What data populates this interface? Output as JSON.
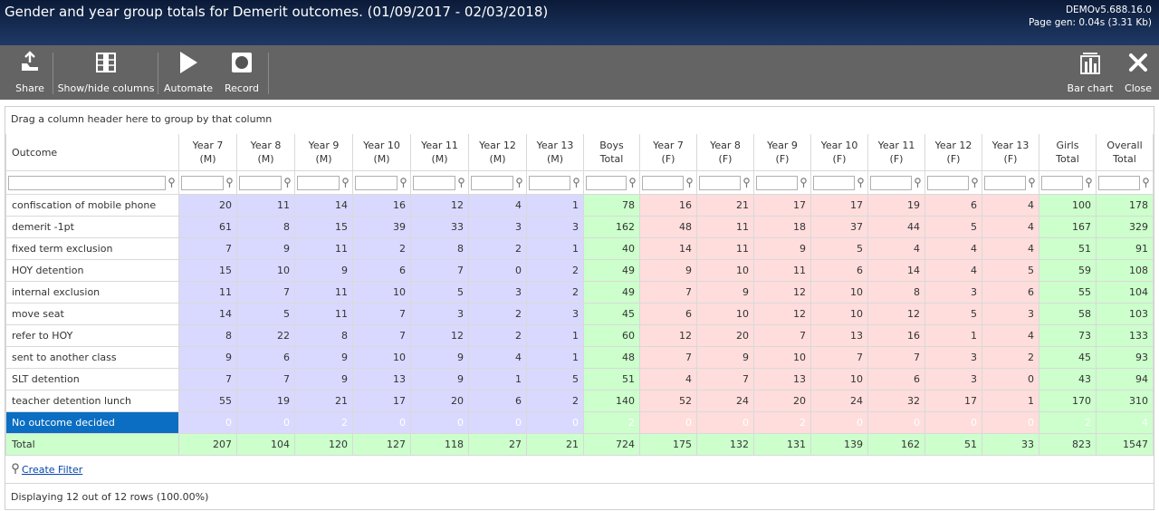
{
  "header": {
    "title": "Gender and year group totals for Demerit outcomes. (01/09/2017 - 02/03/2018)",
    "version": "DEMOv5.688.16.0",
    "page_gen": "Page gen: 0.04s (3.31 Kb)"
  },
  "toolbar": {
    "share": "Share",
    "columns": "Show/hide columns",
    "automate": "Automate",
    "record": "Record",
    "bar_chart": "Bar chart",
    "close": "Close"
  },
  "group_hint": "Drag a column header here to group by that column",
  "table": {
    "columns": [
      {
        "line1": "Outcome",
        "line2": ""
      },
      {
        "line1": "Year 7",
        "line2": "(M)"
      },
      {
        "line1": "Year 8",
        "line2": "(M)"
      },
      {
        "line1": "Year 9",
        "line2": "(M)"
      },
      {
        "line1": "Year 10",
        "line2": "(M)"
      },
      {
        "line1": "Year 11",
        "line2": "(M)"
      },
      {
        "line1": "Year 12",
        "line2": "(M)"
      },
      {
        "line1": "Year 13",
        "line2": "(M)"
      },
      {
        "line1": "Boys",
        "line2": "Total"
      },
      {
        "line1": "Year 7",
        "line2": "(F)"
      },
      {
        "line1": "Year 8",
        "line2": "(F)"
      },
      {
        "line1": "Year 9",
        "line2": "(F)"
      },
      {
        "line1": "Year 10",
        "line2": "(F)"
      },
      {
        "line1": "Year 11",
        "line2": "(F)"
      },
      {
        "line1": "Year 12",
        "line2": "(F)"
      },
      {
        "line1": "Year 13",
        "line2": "(F)"
      },
      {
        "line1": "Girls",
        "line2": "Total"
      },
      {
        "line1": "Overall",
        "line2": "Total"
      }
    ],
    "rows": [
      {
        "outcome": "confiscation of mobile phone",
        "values": [
          "20",
          "11",
          "14",
          "16",
          "12",
          "4",
          "1",
          "78",
          "16",
          "21",
          "17",
          "17",
          "19",
          "6",
          "4",
          "100",
          "178"
        ]
      },
      {
        "outcome": "demerit -1pt",
        "values": [
          "61",
          "8",
          "15",
          "39",
          "33",
          "3",
          "3",
          "162",
          "48",
          "11",
          "18",
          "37",
          "44",
          "5",
          "4",
          "167",
          "329"
        ]
      },
      {
        "outcome": "fixed term exclusion",
        "values": [
          "7",
          "9",
          "11",
          "2",
          "8",
          "2",
          "1",
          "40",
          "14",
          "11",
          "9",
          "5",
          "4",
          "4",
          "4",
          "51",
          "91"
        ]
      },
      {
        "outcome": "HOY detention",
        "values": [
          "15",
          "10",
          "9",
          "6",
          "7",
          "0",
          "2",
          "49",
          "9",
          "10",
          "11",
          "6",
          "14",
          "4",
          "5",
          "59",
          "108"
        ]
      },
      {
        "outcome": "internal exclusion",
        "values": [
          "11",
          "7",
          "11",
          "10",
          "5",
          "3",
          "2",
          "49",
          "7",
          "9",
          "12",
          "10",
          "8",
          "3",
          "6",
          "55",
          "104"
        ]
      },
      {
        "outcome": "move seat",
        "values": [
          "14",
          "5",
          "11",
          "7",
          "3",
          "2",
          "3",
          "45",
          "6",
          "10",
          "12",
          "10",
          "12",
          "5",
          "3",
          "58",
          "103"
        ]
      },
      {
        "outcome": "refer to HOY",
        "values": [
          "8",
          "22",
          "8",
          "7",
          "12",
          "2",
          "1",
          "60",
          "12",
          "20",
          "7",
          "13",
          "16",
          "1",
          "4",
          "73",
          "133"
        ]
      },
      {
        "outcome": "sent to another class",
        "values": [
          "9",
          "6",
          "9",
          "10",
          "9",
          "4",
          "1",
          "48",
          "7",
          "9",
          "10",
          "7",
          "7",
          "3",
          "2",
          "45",
          "93"
        ]
      },
      {
        "outcome": "SLT detention",
        "values": [
          "7",
          "7",
          "9",
          "13",
          "9",
          "1",
          "5",
          "51",
          "4",
          "7",
          "13",
          "10",
          "6",
          "3",
          "0",
          "43",
          "94"
        ]
      },
      {
        "outcome": "teacher detention lunch",
        "values": [
          "55",
          "19",
          "21",
          "17",
          "20",
          "6",
          "2",
          "140",
          "52",
          "24",
          "20",
          "24",
          "32",
          "17",
          "1",
          "170",
          "310"
        ]
      },
      {
        "outcome": "No outcome decided",
        "values": [
          "0",
          "0",
          "2",
          "0",
          "0",
          "0",
          "0",
          "2",
          "0",
          "0",
          "2",
          "0",
          "0",
          "0",
          "0",
          "2",
          "4"
        ]
      },
      {
        "outcome": "Total",
        "values": [
          "207",
          "104",
          "120",
          "127",
          "118",
          "27",
          "21",
          "724",
          "175",
          "132",
          "131",
          "139",
          "162",
          "51",
          "33",
          "823",
          "1547"
        ]
      }
    ]
  },
  "create_filter": "Create Filter",
  "status": "Displaying 12 out of 12 rows (100.00%)"
}
